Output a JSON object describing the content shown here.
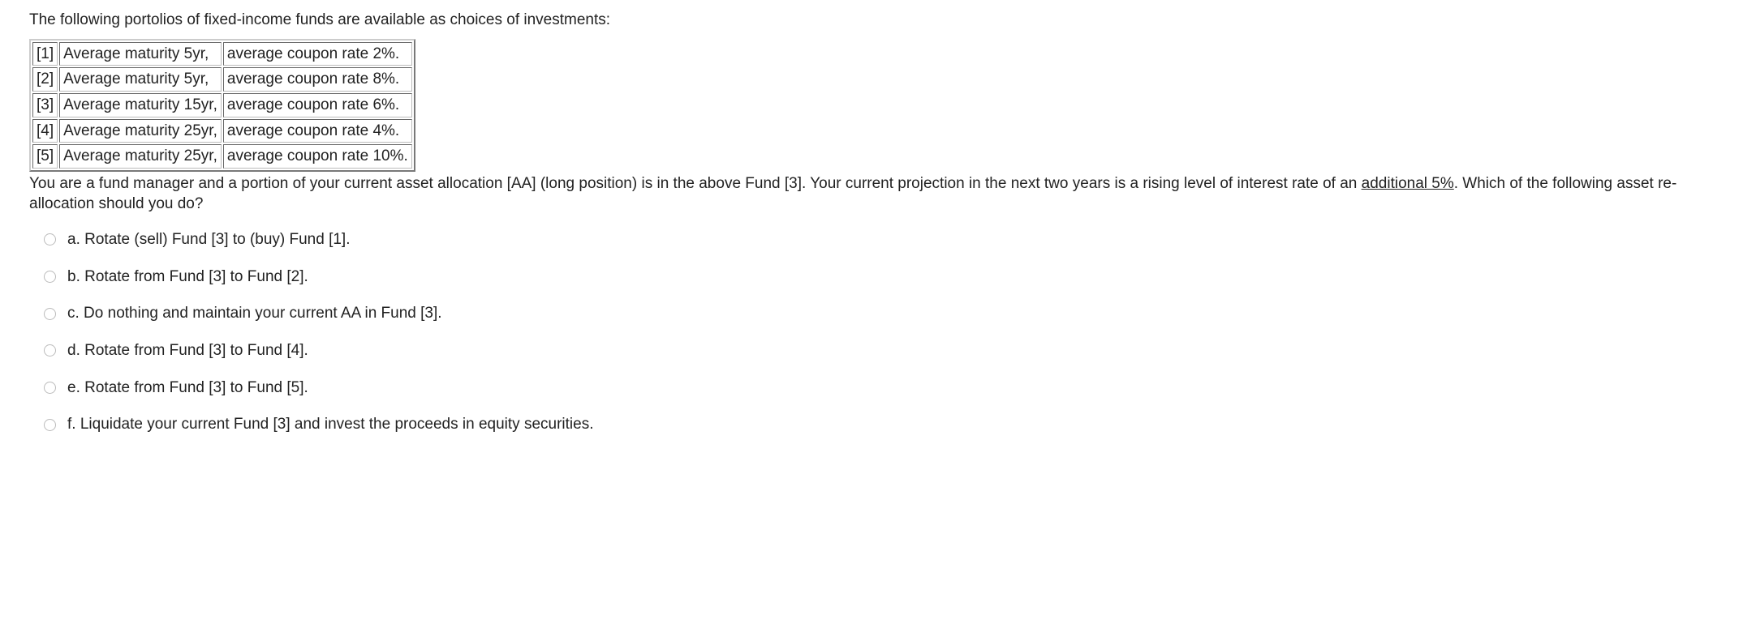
{
  "intro": "The following portolios of fixed-income funds are available as choices of investments:",
  "table": {
    "rows": [
      {
        "num": "[1]",
        "maturity": "Average maturity 5yr,",
        "coupon": "average coupon rate 2%."
      },
      {
        "num": "[2]",
        "maturity": "Average maturity 5yr,",
        "coupon": "average coupon rate 8%."
      },
      {
        "num": "[3]",
        "maturity": "Average maturity 15yr,",
        "coupon": "average coupon rate 6%."
      },
      {
        "num": "[4]",
        "maturity": "Average maturity 25yr,",
        "coupon": "average coupon rate 4%."
      },
      {
        "num": "[5]",
        "maturity": "Average maturity 25yr,",
        "coupon": "average coupon rate 10%."
      }
    ]
  },
  "context": {
    "part1": "You are a fund manager and a portion of your current asset allocation [AA] (long position) is in the above Fund [3]. Your current projection in the next two years is a rising level of interest rate of an ",
    "underlined": "additional 5%",
    "part2": ". Which of the following asset re-allocation should you do?"
  },
  "options": [
    "a. Rotate (sell) Fund [3] to (buy) Fund [1].",
    "b. Rotate from Fund [3] to Fund [2].",
    "c. Do nothing and maintain your current AA in Fund [3].",
    "d. Rotate from Fund [3] to Fund [4].",
    "e. Rotate from Fund [3] to Fund [5].",
    "f.  Liquidate your current Fund [3] and invest the proceeds in equity securities."
  ]
}
